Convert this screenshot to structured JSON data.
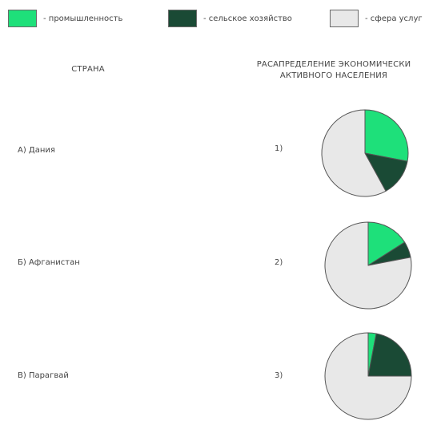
{
  "legend": [
    {
      "color": "#1ee07a",
      "label": "- промышленность"
    },
    {
      "color": "#1a4a35",
      "label": "- сельское хозяйство"
    },
    {
      "color": "#e8e8e8",
      "label": "- сфера услуг"
    }
  ],
  "headers": {
    "country": "СТРАНА",
    "distribution": "РАСАПРЕДЕЛЕНИЕ ЭКОНОМИЧЕСКИ АКТИВНОГО НАСЕЛЕНИЯ"
  },
  "rows": [
    {
      "country": "А) Дания",
      "num": "1)"
    },
    {
      "country": "Б) Афганистан",
      "num": "2)"
    },
    {
      "country": "В) Парагвай",
      "num": "3)"
    }
  ],
  "chart_data": {
    "type": "pie",
    "categories": [
      "промышленность",
      "сельское хозяйство",
      "сфера услуг"
    ],
    "colors": [
      "#1ee07a",
      "#1a4a35",
      "#e8e8e8"
    ],
    "pies": [
      {
        "label": "1)",
        "start_angle_deg": 0,
        "values": [
          28,
          14,
          58
        ]
      },
      {
        "label": "2)",
        "start_angle_deg": 0,
        "values": [
          16,
          6,
          78
        ]
      },
      {
        "label": "3)",
        "start_angle_deg": 0,
        "values": [
          3,
          22,
          75
        ]
      }
    ]
  }
}
